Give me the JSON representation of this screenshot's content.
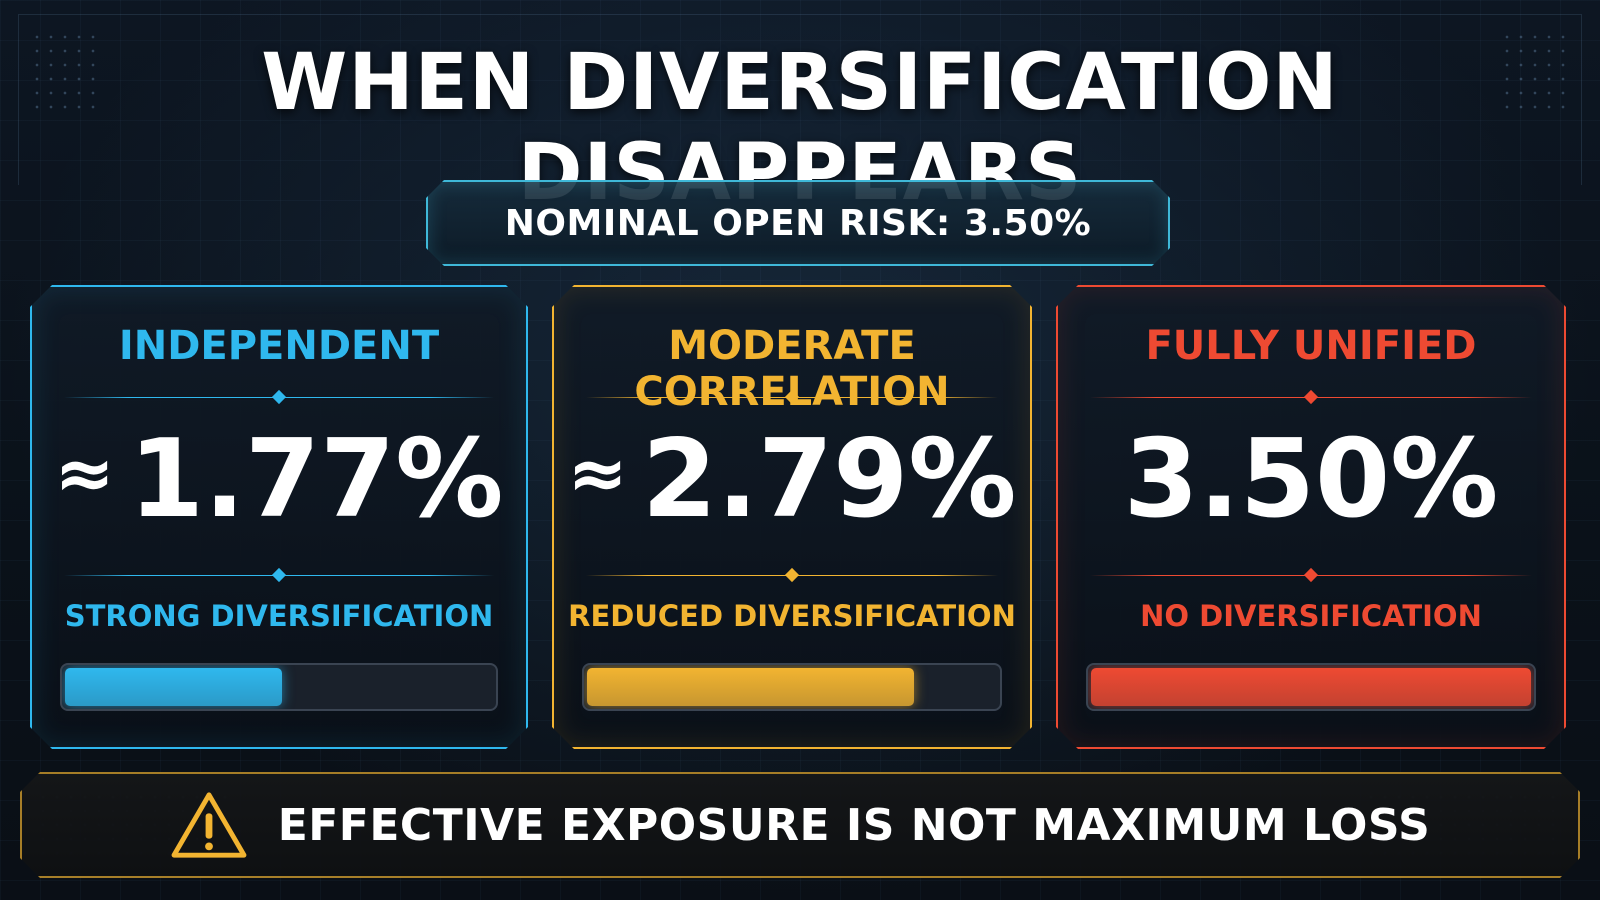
{
  "title": "WHEN DIVERSIFICATION DISAPPEARS",
  "nominal": {
    "label": "NOMINAL OPEN RISK: 3.50%"
  },
  "cards": [
    {
      "title": "INDEPENDENT",
      "approx": "≈",
      "value": "1.77%",
      "subtitle": "STRONG DIVERSIFICATION",
      "bar_fraction": 0.506,
      "color": "#2fb8ee"
    },
    {
      "title": "MODERATE CORRELATION",
      "approx": "≈",
      "value": "2.79%",
      "subtitle": "REDUCED DIVERSIFICATION",
      "bar_fraction": 0.797,
      "color": "#f2b431"
    },
    {
      "title": "FULLY UNIFIED",
      "approx": "",
      "value": "3.50%",
      "subtitle": "NO DIVERSIFICATION",
      "bar_fraction": 1.0,
      "color": "#ee4a32"
    }
  ],
  "warning": {
    "icon": "warning-triangle-icon",
    "text": "EFFECTIVE EXPOSURE IS NOT MAXIMUM LOSS",
    "color": "#f2b431"
  }
}
